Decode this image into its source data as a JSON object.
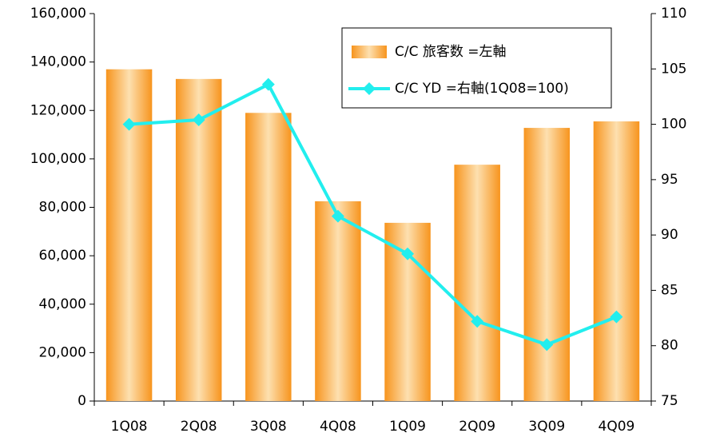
{
  "chart_data": {
    "type": "bar_line",
    "categories": [
      "1Q08",
      "2Q08",
      "3Q08",
      "4Q08",
      "1Q09",
      "2Q09",
      "3Q09",
      "4Q09"
    ],
    "series": [
      {
        "name": "C/C 旅客数 =左軸",
        "type": "bar",
        "color": "#f7941d",
        "values": [
          137000,
          133000,
          119000,
          82500,
          73600,
          97600,
          112800,
          115500
        ]
      },
      {
        "name": "C/C YD =右軸(1Q08=100)",
        "type": "line",
        "axis": "y2",
        "color": "#22eeee",
        "values": [
          100,
          100.4,
          103.6,
          91.7,
          88.3,
          82.2,
          80.1,
          82.6
        ]
      }
    ],
    "ylim": [
      0,
      160000
    ],
    "yticks": [
      0,
      {
        "value": 20000,
        "label": "20,000"
      },
      {
        "value": 40000,
        "label": "40,000"
      },
      {
        "value": 60000,
        "label": "60,000"
      },
      {
        "value": 80000,
        "label": "80,000"
      },
      {
        "value": 100000,
        "label": "100,000"
      },
      {
        "value": 120000,
        "label": "120,000"
      },
      {
        "value": 140000,
        "label": "140,000"
      },
      {
        "value": 160000,
        "label": "160,000"
      }
    ],
    "y2lim": [
      75,
      110
    ],
    "y2ticks": [
      75,
      80,
      85,
      90,
      95,
      100,
      105,
      110
    ],
    "legend": "upper right"
  }
}
